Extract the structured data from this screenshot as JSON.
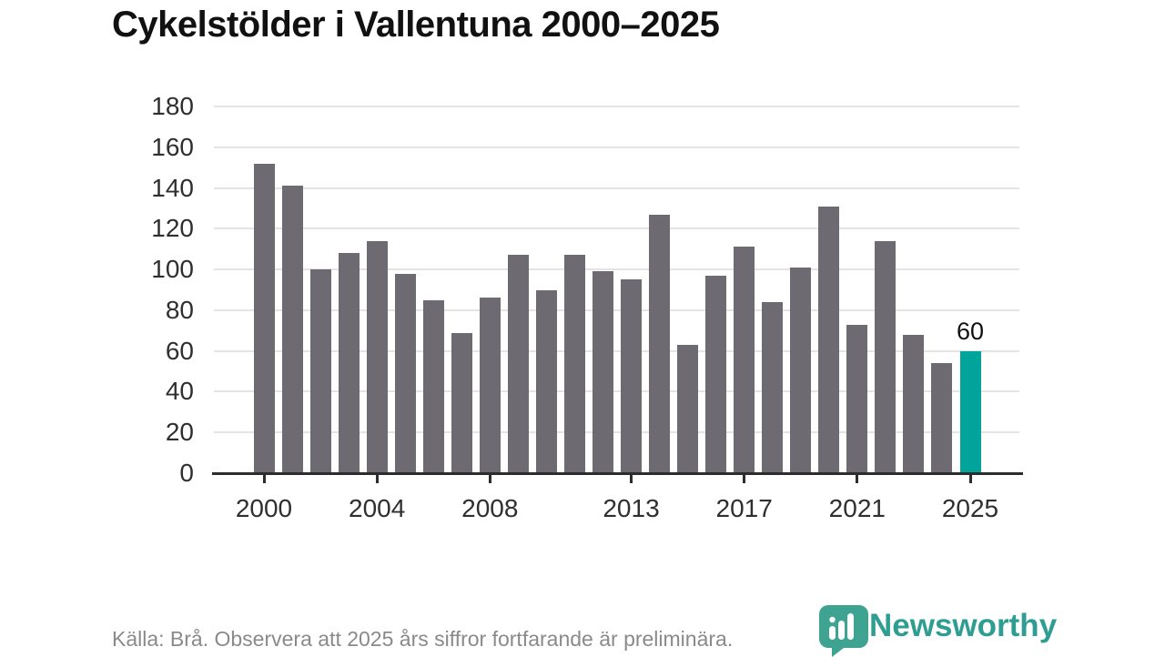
{
  "title": "Cykelstölder i Vallentuna 2000–2025",
  "chart_data": {
    "type": "bar",
    "title": "Cykelstölder i Vallentuna 2000–2025",
    "categories": [
      2000,
      2001,
      2002,
      2003,
      2004,
      2005,
      2006,
      2007,
      2008,
      2009,
      2010,
      2011,
      2012,
      2013,
      2014,
      2015,
      2016,
      2017,
      2018,
      2019,
      2020,
      2021,
      2022,
      2023,
      2024,
      2025
    ],
    "values": [
      152,
      141,
      100,
      108,
      114,
      98,
      85,
      69,
      86,
      107,
      90,
      107,
      99,
      95,
      127,
      63,
      97,
      111,
      84,
      101,
      131,
      73,
      114,
      68,
      54,
      60
    ],
    "xlabel": "",
    "ylabel": "",
    "ylim": [
      0,
      180
    ],
    "y_ticks": [
      0,
      20,
      40,
      60,
      80,
      100,
      120,
      140,
      160,
      180
    ],
    "x_tick_years": [
      2000,
      2004,
      2008,
      2013,
      2017,
      2021,
      2025
    ],
    "grid": "horizontal",
    "legend": "none",
    "highlight": {
      "category": 2025,
      "value": 60,
      "data_label": "60"
    }
  },
  "colors": {
    "bar": "#6d6a71",
    "bar_highlight": "#00a49a",
    "gridline": "#e4e4e4",
    "axis": "#2d2d2d",
    "tick_label": "#2f2f2f",
    "title": "#111111",
    "footer_text": "#8a8a8a",
    "logo_badge": "#3fa392",
    "logo_wordmark": "#2f9e92"
  },
  "footer": {
    "source_text": "Källa: Brå. Observera att 2025 års siffror fortfarande är preliminära."
  },
  "logo": {
    "wordmark": "Newsworthy",
    "icon": "newsworthy-pin-barchart-icon"
  }
}
